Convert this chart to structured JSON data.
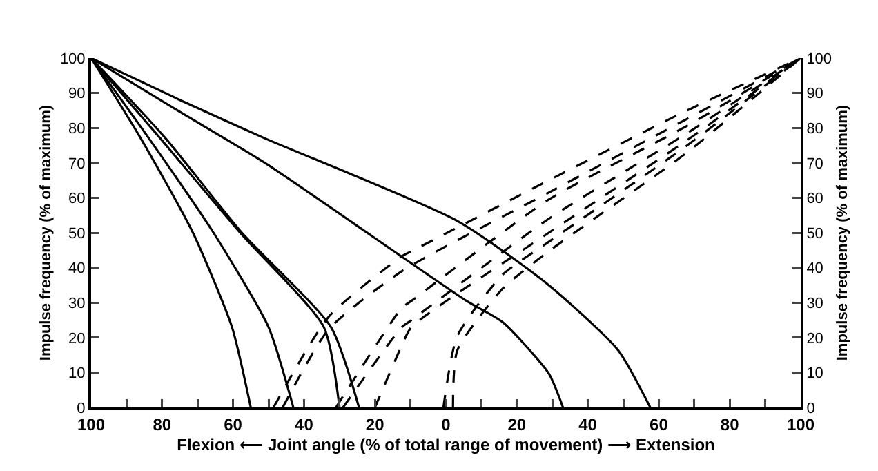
{
  "chart_data": {
    "type": "line",
    "xlabel": "Flexion ⟵ Joint angle (% of total range of movement) ⟶ Extension",
    "ylabel": "Impulse frequency (% of maximum)",
    "y2label": "Impulse frequency (% of maximum)",
    "xlim": [
      -100,
      100
    ],
    "xticks": [
      {
        "value": -100,
        "label": "100"
      },
      {
        "value": -90,
        "label": null
      },
      {
        "value": -80,
        "label": "80"
      },
      {
        "value": -70,
        "label": null
      },
      {
        "value": -60,
        "label": "60"
      },
      {
        "value": -50,
        "label": null
      },
      {
        "value": -40,
        "label": "40"
      },
      {
        "value": -30,
        "label": null
      },
      {
        "value": -20,
        "label": "20"
      },
      {
        "value": -10,
        "label": null
      },
      0,
      {
        "value": 10,
        "label": null
      },
      20,
      {
        "value": 30,
        "label": null
      },
      40,
      {
        "value": 50,
        "label": null
      },
      60,
      {
        "value": 70,
        "label": null
      },
      80,
      {
        "value": 90,
        "label": null
      },
      100
    ],
    "ylim": [
      0,
      100
    ],
    "yticks": [
      0,
      10,
      20,
      30,
      40,
      50,
      60,
      70,
      80,
      90,
      100
    ],
    "y2lim": [
      0,
      100
    ],
    "y2ticks": [
      0,
      10,
      20,
      30,
      40,
      50,
      60,
      70,
      80,
      90,
      100
    ],
    "grid": false,
    "series": [
      {
        "color": "#000000",
        "line_style": "solid",
        "x": [
          -100,
          -86,
          -71.3,
          -60.3,
          -55
        ],
        "values": [
          100,
          77,
          50,
          23,
          0
        ]
      },
      {
        "color": "#000000",
        "line_style": "solid",
        "x": [
          -100,
          -83.7,
          -65.5,
          -50,
          -43
        ],
        "values": [
          100,
          77,
          50,
          23,
          0
        ]
      },
      {
        "color": "#000000",
        "line_style": "solid",
        "x": [
          -100,
          -80.5,
          -58,
          -34.4,
          -30
        ],
        "values": [
          100,
          77,
          50,
          23,
          0
        ]
      },
      {
        "color": "#000000",
        "line_style": "solid",
        "x": [
          -100,
          -79,
          -57.5,
          -32.4,
          -24.5
        ],
        "values": [
          100,
          77,
          50,
          23,
          0
        ]
      },
      {
        "color": "#000000",
        "line_style": "solid",
        "x": [
          -100,
          -75,
          -51,
          5.8,
          16,
          29,
          33
        ],
        "values": [
          100,
          84.6,
          70,
          30.5,
          24.4,
          9.7,
          0
        ]
      },
      {
        "color": "#000000",
        "line_style": "solid",
        "x": [
          -100,
          -75,
          -51,
          3.2,
          29,
          48.6,
          57.6
        ],
        "values": [
          100,
          88,
          77,
          53.4,
          35,
          16.3,
          0
        ]
      },
      {
        "color": "#000000",
        "line_style": "dashed",
        "x": [
          -48.6,
          -33,
          -12.4,
          -9.7,
          29,
          68,
          100
        ],
        "values": [
          0,
          26,
          43.3,
          44.7,
          65,
          85,
          100
        ]
      },
      {
        "color": "#000000",
        "line_style": "dashed",
        "x": [
          -46,
          -33,
          -12.4,
          29,
          68,
          100
        ],
        "values": [
          0,
          22.4,
          39,
          61.5,
          82.6,
          100
        ]
      },
      {
        "color": "#000000",
        "line_style": "dashed",
        "x": [
          -31,
          -12.4,
          -9.7,
          29,
          68,
          100
        ],
        "values": [
          0,
          28.5,
          30.5,
          59.5,
          80.6,
          100
        ]
      },
      {
        "color": "#000000",
        "line_style": "dashed",
        "x": [
          -29,
          -12.4,
          -9.7,
          29,
          68,
          100
        ],
        "values": [
          0,
          23,
          25,
          54,
          78.5,
          100
        ]
      },
      {
        "color": "#000000",
        "line_style": "dashed",
        "x": [
          -20,
          -12.4,
          -9.7,
          29,
          68,
          100
        ],
        "values": [
          0,
          17.8,
          23,
          50,
          76.5,
          100
        ]
      },
      {
        "color": "#000000",
        "line_style": "dashed",
        "x": [
          -0.7,
          3.2,
          16,
          29,
          68,
          100
        ],
        "values": [
          0,
          20.4,
          38,
          47.4,
          75,
          100
        ]
      },
      {
        "color": "#000000",
        "line_style": "dashed",
        "x": [
          2,
          3.2,
          16,
          29,
          68,
          100
        ],
        "values": [
          0,
          16.3,
          34,
          44.7,
          73,
          100
        ]
      }
    ]
  }
}
